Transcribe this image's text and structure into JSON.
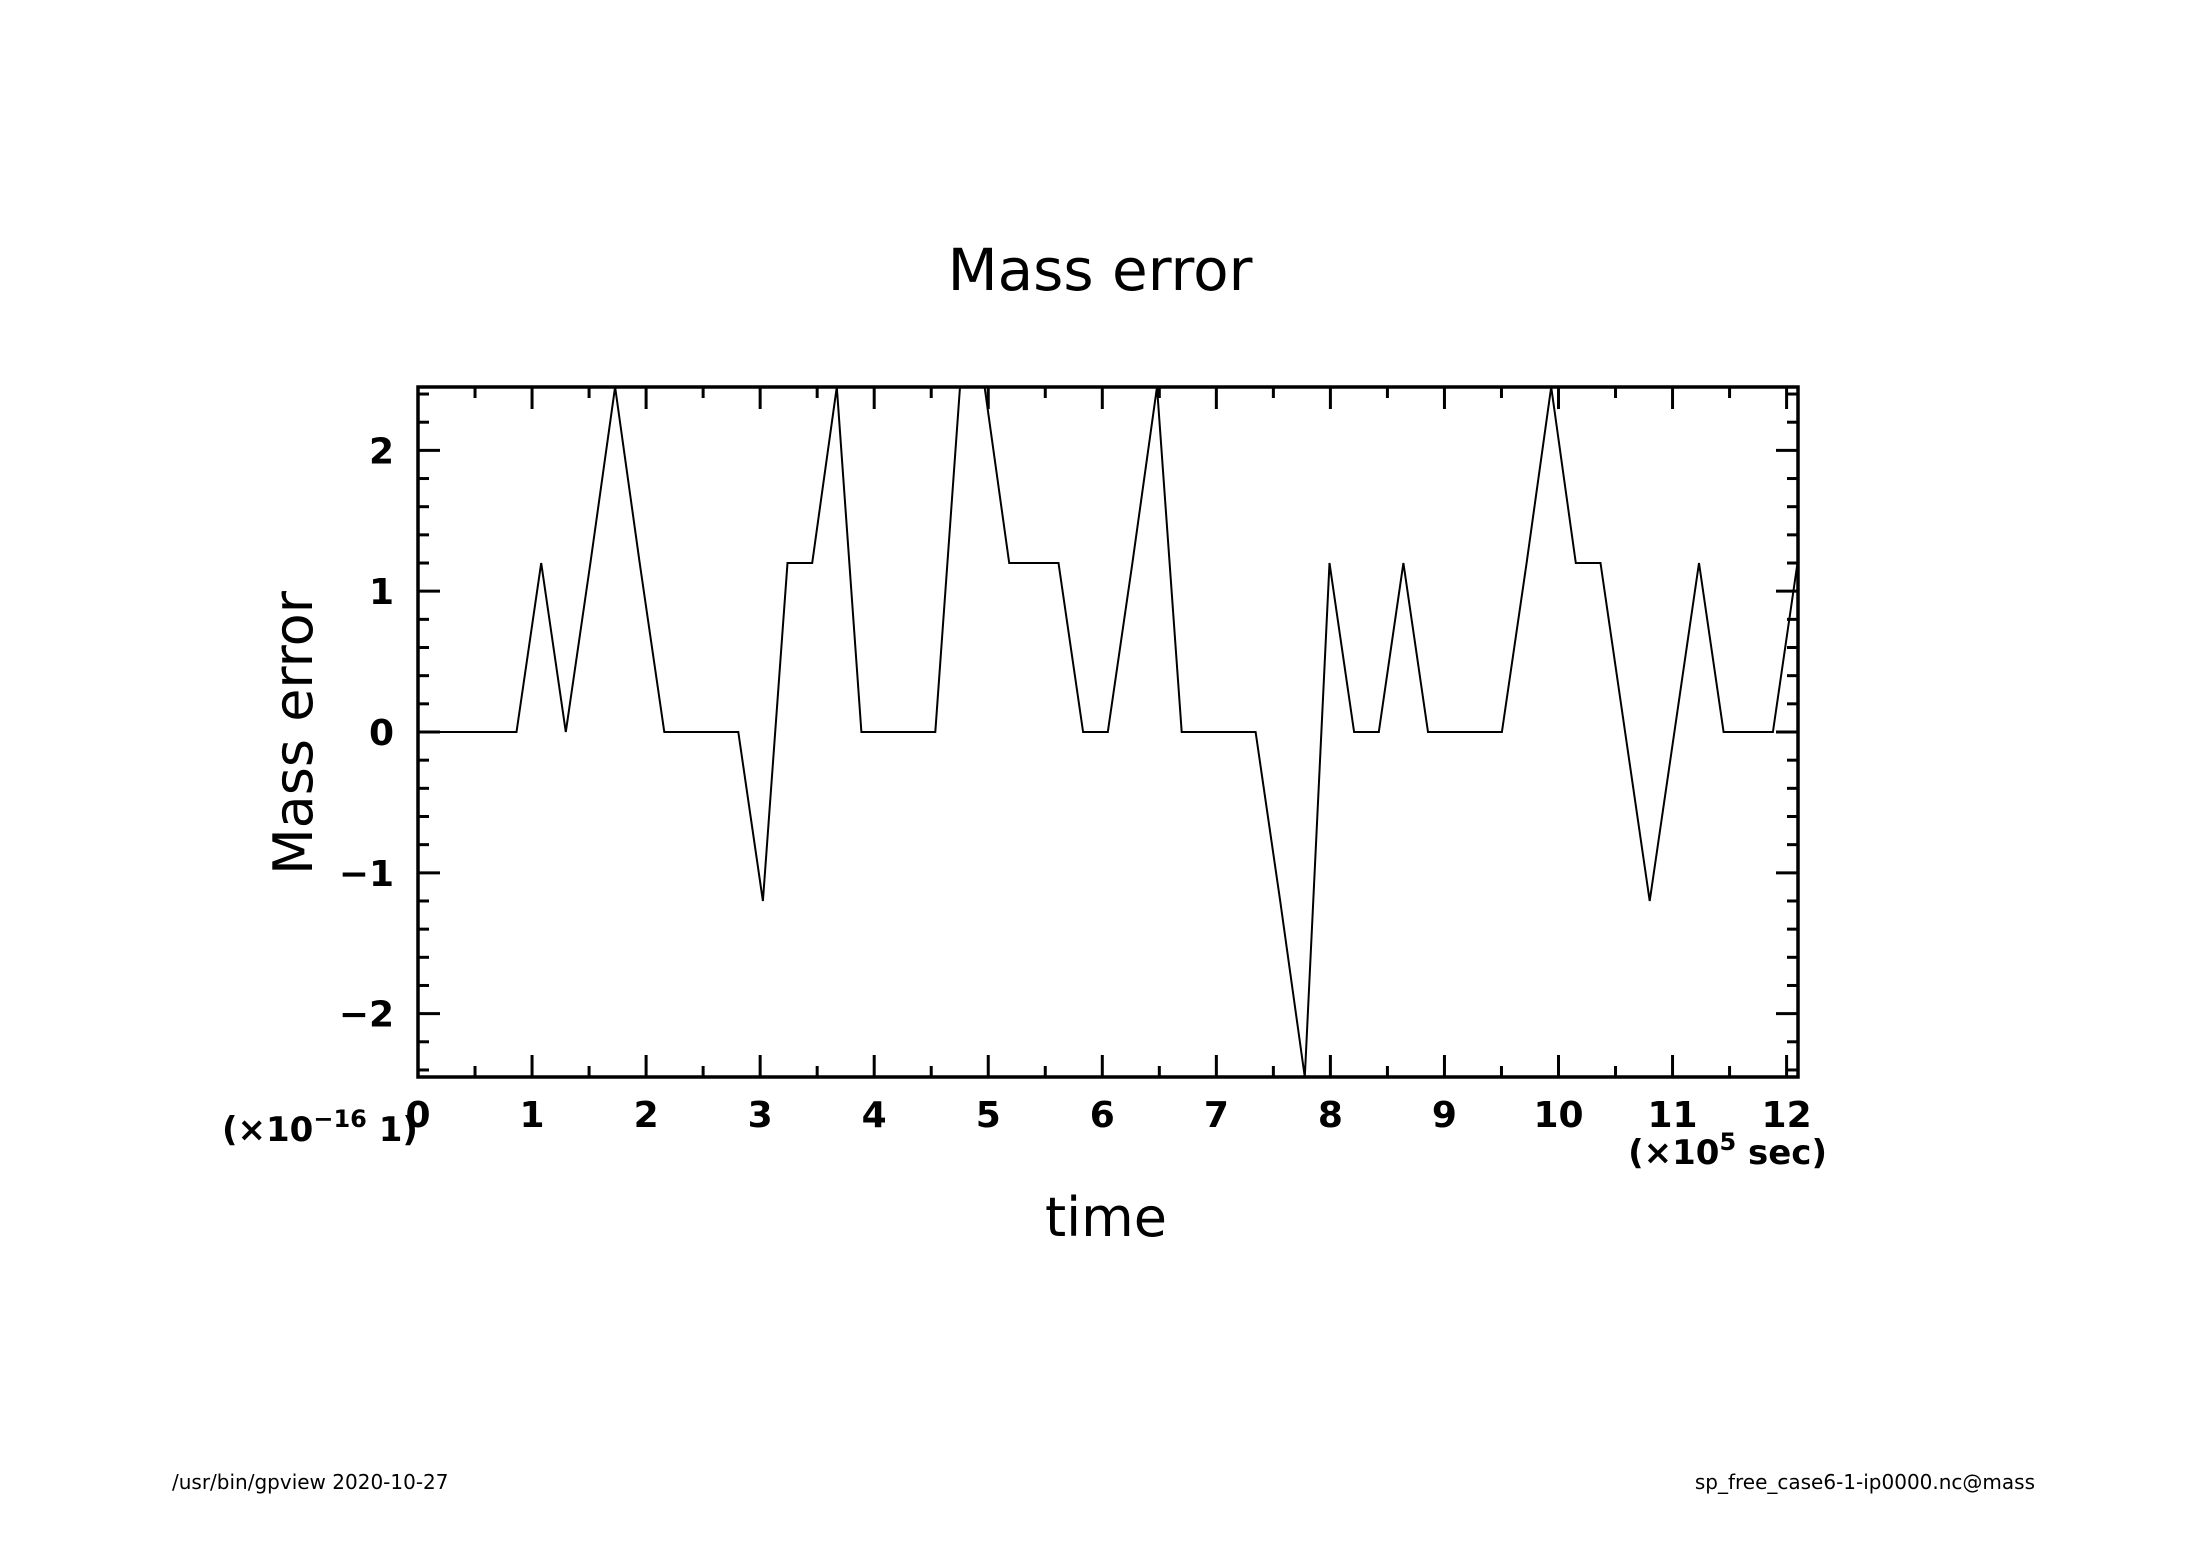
{
  "footer": {
    "left": "/usr/bin/gpview   2020-10-27",
    "right": "sp_free_case6-1-ip0000.nc@mass"
  },
  "chart_data": {
    "type": "line",
    "title": "Mass error",
    "xlabel": "time",
    "ylabel": "Mass error",
    "x_scale": {
      "prefix": "(×10",
      "exp": "5",
      "suffix": " sec)"
    },
    "y_scale": {
      "prefix": "(×10",
      "exp": "−16",
      "suffix": "  1)"
    },
    "xlim": [
      0,
      12.1
    ],
    "ylim": [
      -2.45,
      2.45
    ],
    "x_major_ticks": [
      0,
      1,
      2,
      3,
      4,
      5,
      6,
      7,
      8,
      9,
      10,
      11,
      12
    ],
    "x_tick_labels": [
      "0",
      "1",
      "2",
      "3",
      "4",
      "5",
      "6",
      "7",
      "8",
      "9",
      "10",
      "11",
      "12"
    ],
    "y_major_ticks": [
      -2,
      -1,
      0,
      1,
      2
    ],
    "y_tick_labels": [
      "−2",
      "−1",
      "0",
      "1",
      "2"
    ],
    "grid": false,
    "series": [
      {
        "color": "#000000",
        "x": [
          0,
          0.216,
          0.432,
          0.648,
          0.864,
          1.08,
          1.296,
          1.512,
          1.728,
          1.944,
          2.16,
          2.376,
          2.592,
          2.808,
          3.024,
          3.24,
          3.456,
          3.672,
          3.888,
          4.104,
          4.32,
          4.536,
          4.752,
          4.968,
          5.184,
          5.4,
          5.616,
          5.832,
          6.048,
          6.264,
          6.48,
          6.696,
          6.912,
          7.128,
          7.344,
          7.56,
          7.776,
          7.992,
          8.208,
          8.424,
          8.64,
          8.856,
          9.072,
          9.288,
          9.504,
          9.72,
          9.936,
          10.152,
          10.368,
          10.584,
          10.8,
          11.016,
          11.232,
          11.448,
          11.664,
          11.88,
          12.096
        ],
        "y": [
          0,
          0,
          0,
          0,
          0,
          1.2,
          0,
          1.2,
          2.45,
          1.2,
          0,
          0,
          0,
          0,
          -1.2,
          1.2,
          1.2,
          2.45,
          0,
          0,
          0,
          0,
          2.45,
          2.45,
          1.2,
          1.2,
          1.2,
          0,
          0,
          1.2,
          2.45,
          0,
          0,
          0,
          0,
          -1.2,
          -2.45,
          1.2,
          0,
          0,
          1.2,
          0,
          0,
          0,
          0,
          1.2,
          2.45,
          1.2,
          1.2,
          0,
          -1.2,
          0,
          1.2,
          0,
          0,
          0,
          1.2
        ]
      }
    ]
  }
}
